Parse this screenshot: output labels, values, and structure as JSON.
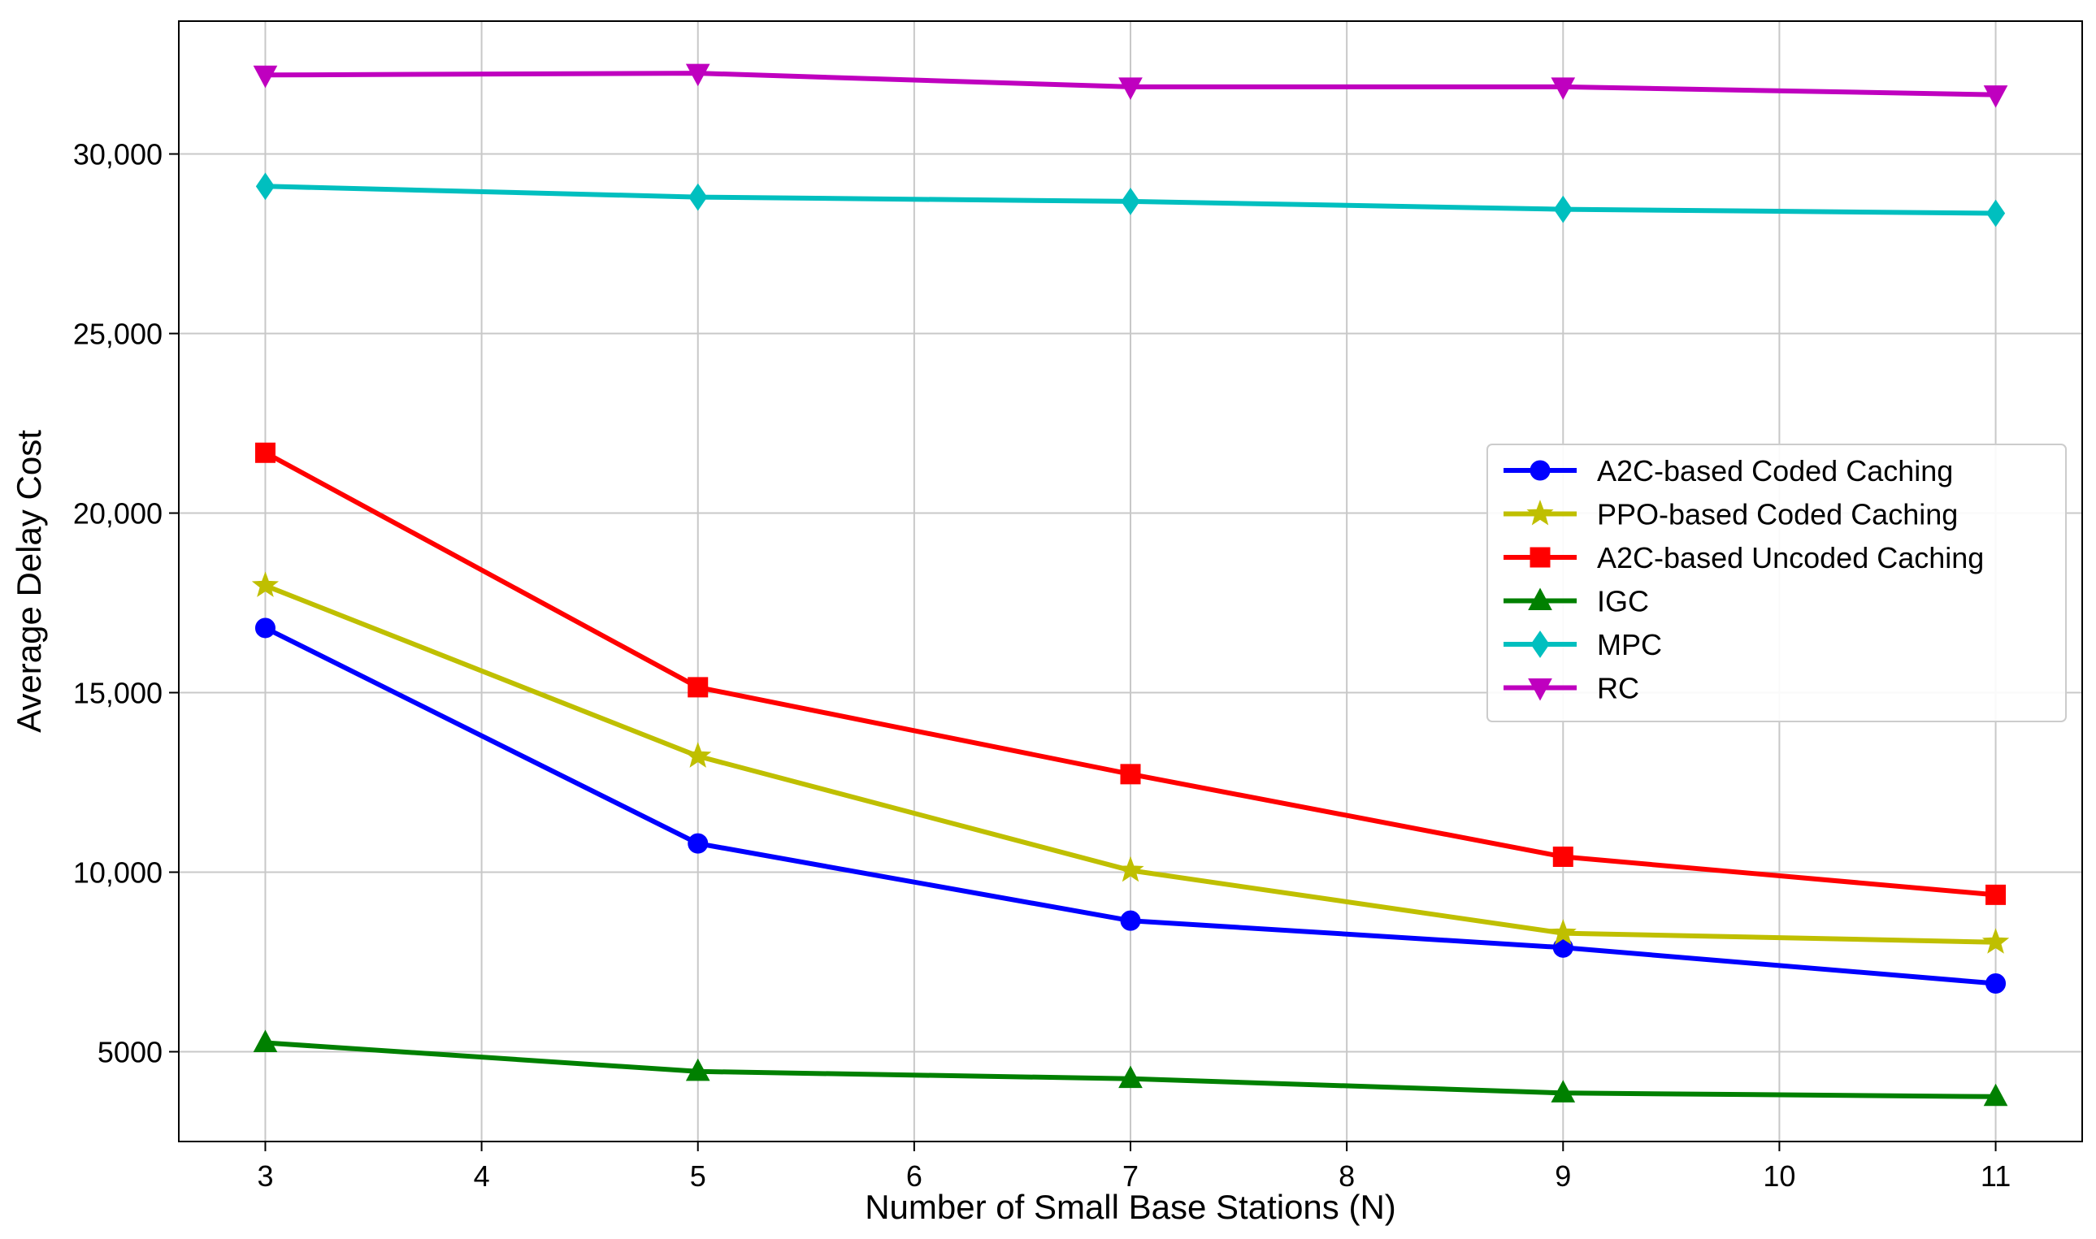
{
  "chart_data": {
    "type": "line",
    "title": "",
    "xlabel": "Number of Small Base Stations (N)",
    "ylabel": "Average Delay Cost",
    "x": [
      3,
      5,
      7,
      9,
      11
    ],
    "xlim": [
      2.6,
      11.4
    ],
    "ylim": [
      2500,
      33700
    ],
    "xticks": [
      3,
      4,
      5,
      6,
      7,
      8,
      9,
      10,
      11
    ],
    "yticks": [
      5000,
      10000,
      15000,
      20000,
      25000,
      30000
    ],
    "ytick_labels": [
      "5000",
      "10,000",
      "15,000",
      "20,000",
      "25,000",
      "30,000"
    ],
    "grid": true,
    "legend_position": "center-right",
    "series": [
      {
        "name": "A2C-based Coded Caching",
        "color": "#0000ff",
        "marker": "circle",
        "values": [
          16800,
          10800,
          8650,
          7900,
          6900
        ]
      },
      {
        "name": "PPO-based Coded Caching",
        "color": "#bfbf00",
        "marker": "star",
        "values": [
          17980,
          13230,
          10050,
          8300,
          8050
        ]
      },
      {
        "name": "A2C-based Uncoded Caching",
        "color": "#ff0000",
        "marker": "square",
        "values": [
          21680,
          15150,
          12730,
          10430,
          9370
        ]
      },
      {
        "name": "IGC",
        "color": "#008000",
        "marker": "triangle-up",
        "values": [
          5250,
          4450,
          4250,
          3850,
          3750
        ]
      },
      {
        "name": "MPC",
        "color": "#00bfbf",
        "marker": "diamond",
        "values": [
          29100,
          28800,
          28680,
          28460,
          28350
        ]
      },
      {
        "name": "RC",
        "color": "#bf00bf",
        "marker": "triangle-down",
        "values": [
          32200,
          32250,
          31870,
          31870,
          31650
        ]
      }
    ]
  }
}
